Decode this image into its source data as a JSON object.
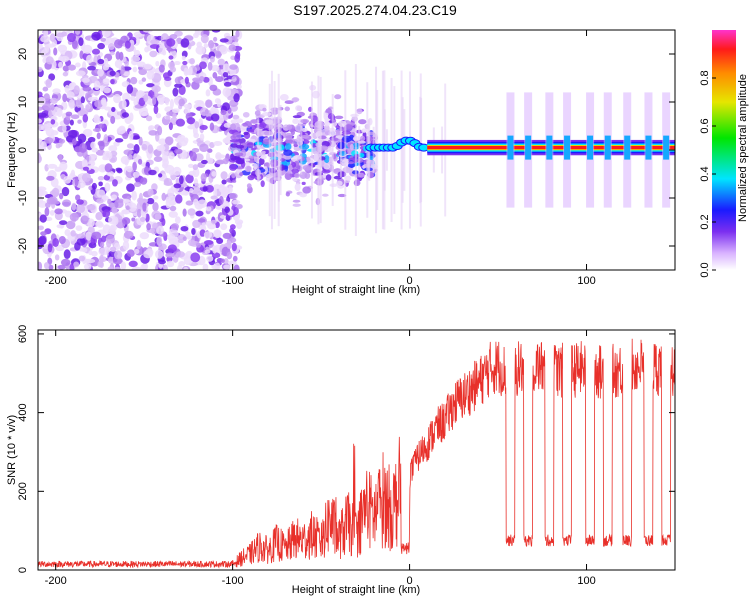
{
  "title": "S197.2025.274.04.23.C19",
  "colors": {
    "line": "#e8302a",
    "axis": "#000000",
    "spec_low": "#e6d2f7",
    "spec_mid": "#7b2ff0",
    "spec_high": "#ff1a1a"
  },
  "chart_data": [
    {
      "type": "heatmap",
      "name": "spectrogram",
      "xlabel": "Height of straight line (km)",
      "ylabel": "Frequency (Hz)",
      "xlim": [
        -210,
        150
      ],
      "ylim": [
        -25,
        25
      ],
      "xticks": [
        -200,
        -100,
        0,
        100
      ],
      "yticks": [
        -20,
        -10,
        0,
        10,
        20
      ],
      "colorbar": {
        "label": "Normalized spectral amplitude",
        "range": [
          0,
          1
        ],
        "ticks": [
          "0.0",
          "0.2",
          "0.4",
          "0.6",
          "0.8"
        ],
        "tick_values": [
          0.0,
          0.2,
          0.4,
          0.6,
          0.8
        ]
      },
      "noise_region_km": [
        -210,
        -100
      ],
      "turbulent_region_km": [
        -100,
        -20
      ],
      "carrier_start_km": 10,
      "carrier_frequency_hz": 0.5,
      "dropout_heights_km": [
        57,
        67,
        79,
        89,
        102,
        112,
        123,
        135,
        145
      ]
    },
    {
      "type": "line",
      "name": "snr",
      "xlabel": "Height of straight line (km)",
      "ylabel": "SNR (10 * v/v)",
      "xlim": [
        -210,
        150
      ],
      "ylim": [
        0,
        610
      ],
      "xticks": [
        -200,
        -100,
        0,
        100
      ],
      "yticks": [
        0,
        200,
        400,
        600
      ],
      "series": [
        {
          "name": "SNR",
          "x": [
            -210,
            -150,
            -100,
            -95,
            -90,
            -85,
            -80,
            -75,
            -70,
            -65,
            -60,
            -55,
            -50,
            -45,
            -40,
            -35,
            -30,
            -25,
            -20,
            -15,
            -10,
            -5,
            0,
            5,
            10,
            15,
            20,
            25,
            30,
            35,
            40,
            45,
            50,
            55,
            60,
            70,
            80,
            90,
            100,
            110,
            120,
            130,
            140,
            150
          ],
          "values": [
            15,
            15,
            15,
            30,
            40,
            60,
            50,
            70,
            55,
            80,
            75,
            90,
            70,
            130,
            80,
            120,
            90,
            160,
            140,
            180,
            150,
            210,
            240,
            290,
            320,
            360,
            380,
            420,
            440,
            460,
            480,
            510,
            520,
            500,
            510,
            520,
            510,
            505,
            515,
            500,
            510,
            520,
            515,
            505
          ]
        }
      ],
      "dropouts": {
        "heights_km": [
          57,
          67,
          79,
          89,
          102,
          112,
          123,
          135,
          145
        ],
        "level": 75,
        "width_km": 5
      }
    }
  ]
}
